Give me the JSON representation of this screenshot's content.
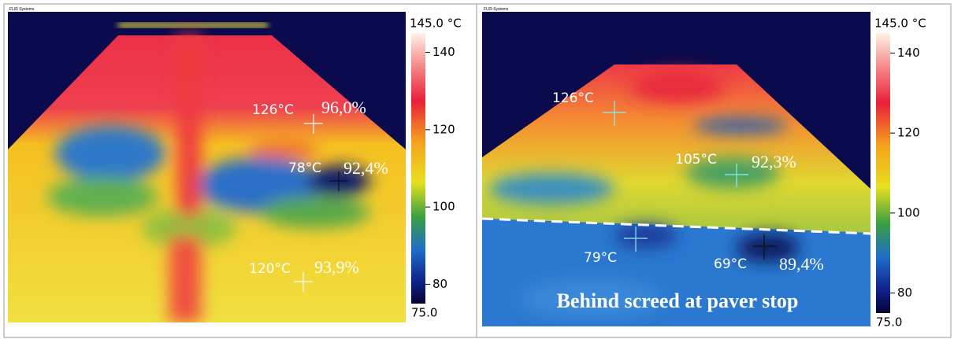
{
  "panels": [
    {
      "brand": "FLIR Systems",
      "colorbar": {
        "range": [
          {
            "value": 75,
            "label": "75.0"
          },
          {
            "value": 145,
            "label": "145.0 °C"
          }
        ],
        "ticks": [
          80,
          100,
          120,
          140
        ]
      },
      "spots": [
        {
          "temp": "126°C",
          "emissivity": "96,0%"
        },
        {
          "temp": "78°C",
          "emissivity": "92,4%"
        },
        {
          "temp": "120°C",
          "emissivity": "93,9%"
        }
      ]
    },
    {
      "brand": "FLIR Systems",
      "colorbar": {
        "range": [
          {
            "value": 75,
            "label": "75.0"
          },
          {
            "value": 145,
            "label": "145.0 °C"
          }
        ],
        "ticks": [
          80,
          100,
          120,
          140
        ]
      },
      "spots": [
        {
          "temp": "126°C"
        },
        {
          "temp": "105°C",
          "emissivity": "92,3%"
        },
        {
          "temp": "79°C"
        },
        {
          "temp": "69°C",
          "emissivity": "89,4%"
        }
      ],
      "caption": "Behind screed at paver stop"
    }
  ]
}
